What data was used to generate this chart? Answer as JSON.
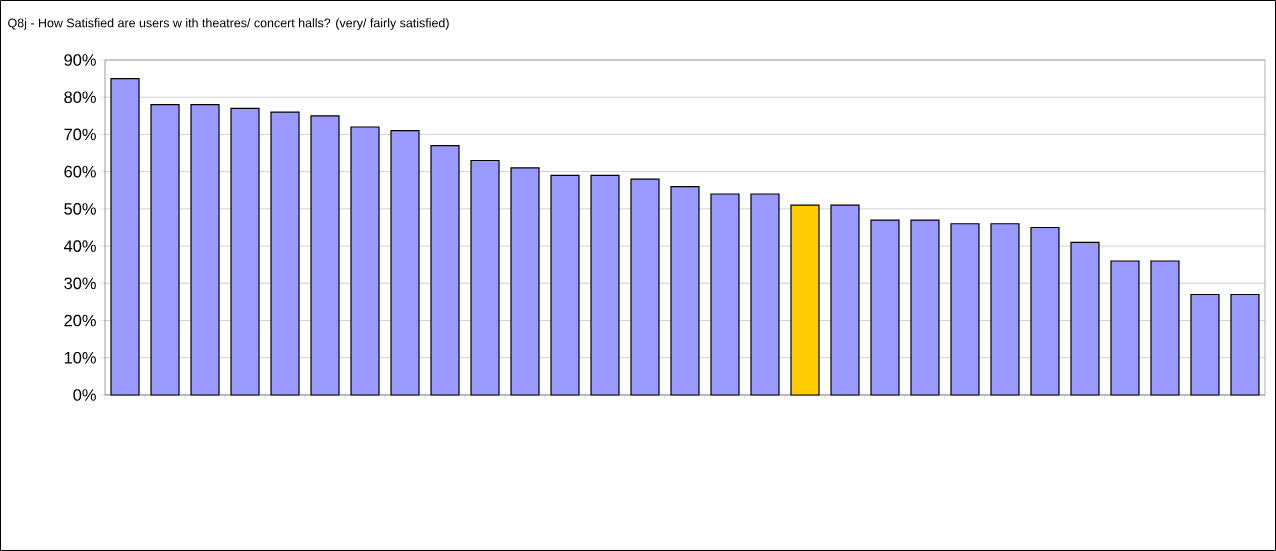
{
  "chart_data": {
    "type": "bar",
    "title": "Q8j - How Satisfied are users w ith theatres/ concert halls? (very/ fairly satisfied)",
    "categories": [
      null,
      null,
      null,
      null,
      null,
      null,
      null,
      null,
      null,
      null,
      null,
      null,
      null,
      null,
      null,
      null,
      null,
      null,
      null,
      null,
      null,
      null,
      null,
      null,
      null,
      null,
      null,
      null,
      null
    ],
    "values": [
      85,
      78,
      78,
      77,
      76,
      75,
      72,
      71,
      67,
      63,
      61,
      59,
      59,
      58,
      56,
      54,
      54,
      51,
      51,
      47,
      47,
      46,
      46,
      45,
      41,
      36,
      36,
      27,
      27
    ],
    "colors": [
      "#9999ff",
      "#9999ff",
      "#9999ff",
      "#9999ff",
      "#9999ff",
      "#9999ff",
      "#9999ff",
      "#9999ff",
      "#9999ff",
      "#9999ff",
      "#9999ff",
      "#9999ff",
      "#9999ff",
      "#9999ff",
      "#9999ff",
      "#9999ff",
      "#9999ff",
      "#ffcc00",
      "#9999ff",
      "#9999ff",
      "#9999ff",
      "#9999ff",
      "#9999ff",
      "#9999ff",
      "#9999ff",
      "#9999ff",
      "#9999ff",
      "#9999ff",
      "#9999ff"
    ],
    "ylim": [
      0,
      90
    ],
    "yticks": [
      {
        "value": 0,
        "label": "0%"
      },
      {
        "value": 10,
        "label": "10%"
      },
      {
        "value": 20,
        "label": "20%"
      },
      {
        "value": 30,
        "label": "30%"
      },
      {
        "value": 40,
        "label": "40%"
      },
      {
        "value": 50,
        "label": "50%"
      },
      {
        "value": 60,
        "label": "60%"
      },
      {
        "value": 70,
        "label": "70%"
      },
      {
        "value": 80,
        "label": "80%"
      },
      {
        "value": 90,
        "label": "90%"
      }
    ],
    "grid": "y"
  }
}
